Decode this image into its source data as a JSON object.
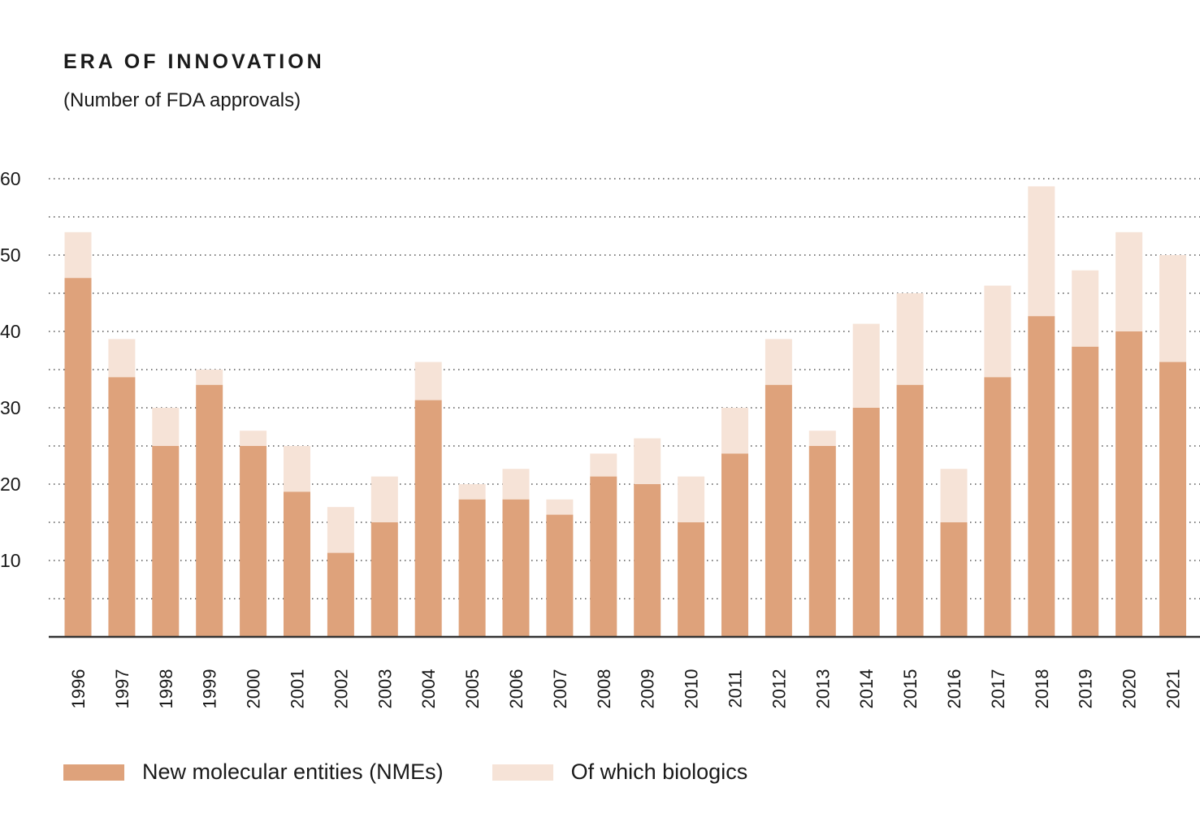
{
  "colors": {
    "nme": "#dea27b",
    "biologics": "#f6e3d7",
    "grid": "#555555",
    "axis": "#333333"
  },
  "chart_data": {
    "type": "bar",
    "title": "ERA OF INNOVATION",
    "subtitle": "(Number of FDA approvals)",
    "ylim": [
      0,
      60
    ],
    "yticks": [
      10,
      20,
      30,
      40,
      50,
      60
    ],
    "grid": true,
    "legend_placement": "bottom",
    "categories": [
      "1996",
      "1997",
      "1998",
      "1999",
      "2000",
      "2001",
      "2002",
      "2003",
      "2004",
      "2005",
      "2006",
      "2007",
      "2008",
      "2009",
      "2010",
      "2011",
      "2012",
      "2013",
      "2014",
      "2015",
      "2016",
      "2017",
      "2018",
      "2019",
      "2020",
      "2021"
    ],
    "series": [
      {
        "name": "New molecular entities (NMEs)",
        "values": [
          47,
          34,
          25,
          33,
          25,
          19,
          11,
          15,
          31,
          18,
          18,
          16,
          21,
          20,
          15,
          24,
          33,
          25,
          30,
          33,
          15,
          34,
          42,
          38,
          40,
          36
        ]
      },
      {
        "name": "Of which biologics",
        "values": [
          6,
          5,
          5,
          2,
          2,
          6,
          6,
          6,
          5,
          2,
          4,
          2,
          3,
          6,
          6,
          6,
          6,
          2,
          11,
          12,
          7,
          12,
          17,
          10,
          13,
          14
        ]
      }
    ]
  }
}
